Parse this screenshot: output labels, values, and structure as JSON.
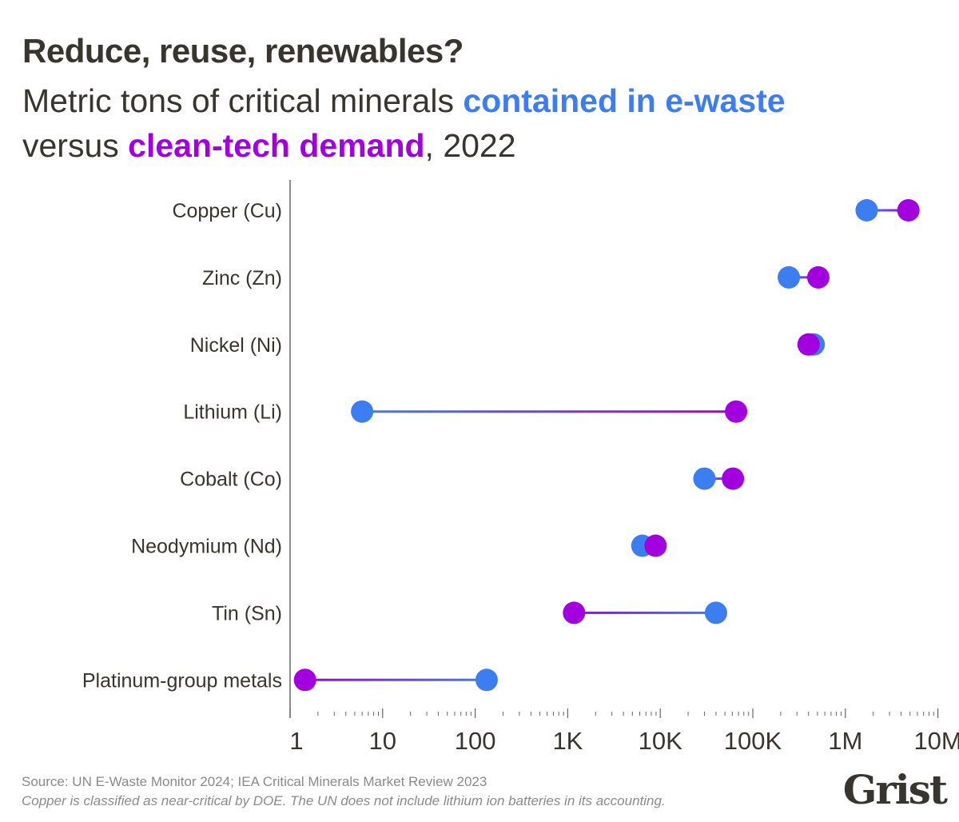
{
  "title": "Reduce, reuse, renewables?",
  "subtitle": {
    "part1": "Metric tons of critical minerals ",
    "blue_text": "contained in e-waste",
    "part2": "versus ",
    "purple_text": "clean-tech demand",
    "part3": ", 2022"
  },
  "colors": {
    "ewaste": "#3c7df0",
    "demand": "#a300e0",
    "text": "#38342e",
    "axis": "#555555"
  },
  "chart_data": {
    "type": "dumbbell",
    "xscale": "log",
    "xlim": [
      1,
      10000000
    ],
    "xticks": [
      1,
      10,
      100,
      1000,
      10000,
      100000,
      1000000,
      10000000
    ],
    "xtick_labels": [
      "1",
      "10",
      "100",
      "1K",
      "10K",
      "100K",
      "1M",
      "10M"
    ],
    "series": [
      {
        "name": "contained in e-waste",
        "color": "#3c7df0"
      },
      {
        "name": "clean-tech demand",
        "color": "#a300e0"
      }
    ],
    "categories": [
      "Copper (Cu)",
      "Zinc (Zn)",
      "Nickel (Ni)",
      "Lithium (Li)",
      "Cobalt (Co)",
      "Neodymium (Nd)",
      "Tin (Sn)",
      "Platinum-group metals"
    ],
    "ewaste": [
      1700000,
      245000,
      455000,
      6,
      30000,
      6400,
      40000,
      133
    ],
    "demand": [
      4800000,
      510000,
      400000,
      66000,
      61000,
      8900,
      1170,
      1.45
    ]
  },
  "footer": {
    "source": "Source: UN E-Waste Monitor 2024; IEA Critical Minerals Market Review 2023",
    "note": "Copper is classified as near-critical by DOE. The UN does not include lithium ion batteries in its accounting."
  },
  "logo": "Grist"
}
